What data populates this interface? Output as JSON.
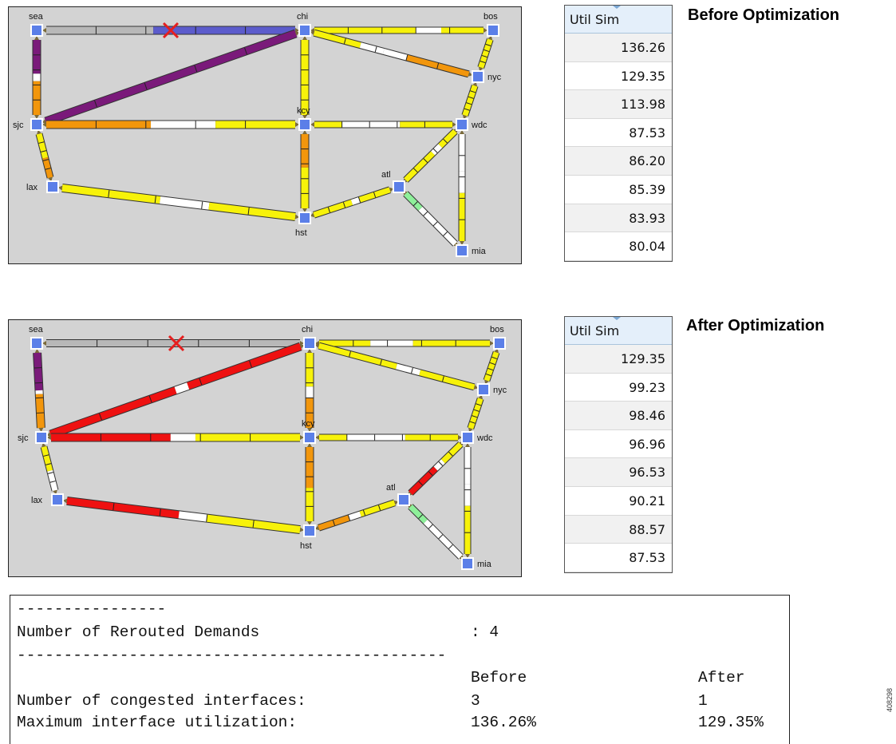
{
  "colors": {
    "map_bg": "#d3d3d3",
    "node": "#5b7fe8",
    "failed": "#b8b8b8",
    "purple": "#7a1a7a",
    "blue": "#5c5ccc",
    "orange": "#f2960c",
    "yellow": "#f7f20a",
    "white": "#ffffff",
    "red": "#ee1111",
    "green": "#8ef09a",
    "x_mark": "#e61e1e"
  },
  "nodes": {
    "sea": "sea",
    "chi": "chi",
    "bos": "bos",
    "nyc": "nyc",
    "sjc": "sjc",
    "kcy": "kcy",
    "wdc": "wdc",
    "atl": "atl",
    "lax": "lax",
    "hst": "hst",
    "mia": "mia"
  },
  "before": {
    "caption": "Before Optimization",
    "table_header": "Util Sim",
    "util_values": [
      "136.26",
      "129.35",
      "113.98",
      "87.53",
      "86.20",
      "85.39",
      "83.93",
      "80.04"
    ]
  },
  "after": {
    "caption": "After Optimization",
    "table_header": "Util Sim",
    "util_values": [
      "129.35",
      "99.23",
      "98.46",
      "96.96",
      "96.53",
      "90.21",
      "88.57",
      "87.53"
    ]
  },
  "report": {
    "dash_short": "----------------",
    "rerouted_label": "Number of Rerouted Demands",
    "rerouted_value": ": 4",
    "dash_long": "----------------------------------------------",
    "col_before": "Before",
    "col_after": "After",
    "congested_label": "Number of congested interfaces:",
    "congested_before": "3",
    "congested_after": "1",
    "max_util_label": "Maximum interface utilization:",
    "max_util_before": "136.26%",
    "max_util_after": "129.35%"
  },
  "figure_id": "408298"
}
